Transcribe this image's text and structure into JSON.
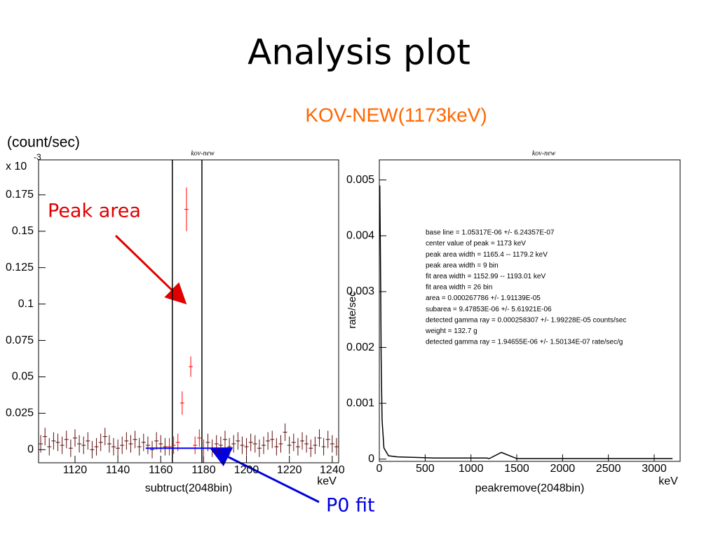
{
  "title": "Analysis plot",
  "subtitle": "KOV-NEW(1173keV)",
  "annotations": {
    "unit": "(count/sec)",
    "peak": "Peak area",
    "fit": "P0 fit"
  },
  "chart_data": [
    {
      "type": "errorbar",
      "title": "kov-new",
      "x_label": "subtruct(2048bin)",
      "x_unit": "keV",
      "y_multiplier": "x 10",
      "y_exponent": "-3",
      "xlim": [
        1103,
        1243
      ],
      "ylim": [
        -0.009,
        0.199
      ],
      "xticks": [
        1120,
        1140,
        1160,
        1180,
        1200,
        1220,
        1240
      ],
      "yticks": [
        0,
        0.025,
        0.05,
        0.075,
        0.1,
        0.125,
        0.15,
        0.175
      ],
      "vlines": [
        1165.4,
        1179.2
      ],
      "fit": {
        "x": [
          1152.99,
          1193.01
        ],
        "value": 0.001,
        "color": "#0000ff"
      },
      "series": [
        {
          "color": "#5a0a0a",
          "error": 0.006,
          "x": [
            1104,
            1106,
            1108,
            1110,
            1112,
            1114,
            1116,
            1118,
            1120,
            1122,
            1124,
            1126,
            1128,
            1130,
            1132,
            1134,
            1136,
            1138,
            1140,
            1142,
            1144,
            1146,
            1148,
            1150,
            1152,
            1154,
            1156,
            1158,
            1160,
            1162,
            1182,
            1184,
            1186,
            1188,
            1190,
            1192,
            1194,
            1196,
            1198,
            1200,
            1202,
            1204,
            1206,
            1208,
            1210,
            1212,
            1214,
            1216,
            1218,
            1220,
            1222,
            1224,
            1226,
            1228,
            1230,
            1232,
            1234,
            1236,
            1238,
            1240,
            1242
          ],
          "values": [
            0.004,
            0.009,
            0.002,
            0.006,
            0.005,
            0.003,
            0.007,
            0.001,
            0.008,
            0.004,
            0.003,
            0.006,
            0.0,
            0.002,
            0.005,
            0.009,
            0.004,
            0.002,
            0.001,
            0.003,
            0.006,
            0.004,
            0.007,
            0.002,
            0.005,
            0.003,
            0.0,
            0.006,
            0.004,
            0.002,
            0.005,
            0.001,
            0.004,
            0.003,
            0.007,
            0.002,
            0.004,
            0.006,
            0.003,
            0.002,
            0.005,
            0.004,
            0.001,
            0.003,
            0.006,
            0.007,
            0.002,
            0.004,
            0.012,
            0.003,
            0.005,
            0.002,
            0.006,
            0.004,
            0.001,
            0.003,
            0.008,
            0.002,
            0.007,
            0.004,
            0.002
          ]
        },
        {
          "color": "#ff0000",
          "error": [
            0.006,
            0.006,
            0.006,
            0.008,
            0.015,
            0.007,
            0.006,
            0.006,
            0.006
          ],
          "x": [
            1164,
            1166,
            1168,
            1170,
            1172,
            1174,
            1176,
            1178,
            1180
          ],
          "values": [
            0.002,
            0.003,
            0.005,
            0.032,
            0.165,
            0.057,
            0.003,
            0.008,
            0.001
          ]
        }
      ]
    },
    {
      "type": "line",
      "title": "kov-new",
      "x_label": "peakremove(2048bin)",
      "x_unit": "keV",
      "y_label": "rate/sec",
      "xlim": [
        0,
        3283
      ],
      "ylim": [
        -4e-05,
        0.00536
      ],
      "xticks": [
        0,
        500,
        1000,
        1500,
        2000,
        2500,
        3000
      ],
      "yticks": [
        0,
        0.001,
        0.002,
        0.003,
        0.004,
        0.005
      ],
      "series": [
        {
          "color": "#000000",
          "x": [
            5,
            10,
            15,
            20,
            30,
            50,
            100,
            200,
            400,
            600,
            800,
            1000,
            1173,
            1200,
            1332,
            1500,
            2000,
            2500,
            3000,
            3200
          ],
          "values": [
            0.0049,
            0.004,
            0.003,
            0.0018,
            0.0007,
            0.0002,
            6e-05,
            4e-05,
            3e-05,
            2e-05,
            2e-05,
            2e-05,
            2e-05,
            1e-05,
            0.00012,
            1e-05,
            1e-05,
            1e-05,
            1e-05,
            1e-05
          ]
        }
      ],
      "notes": [
        "base line = 1.05317E-06 +/- 6.24357E-07",
        "center value of peak = 1173 keV",
        "peak area width = 1165.4 -- 1179.2 keV",
        "peak area width = 9 bin",
        "fit area width = 1152.99 -- 1193.01 keV",
        "fit area width = 26 bin",
        "area = 0.000267786 +/- 1.91139E-05",
        "subarea = 9.47853E-06 +/- 5.61921E-06",
        "detected gamma ray = 0.000258307 +/- 1.99228E-05 counts/sec",
        "weight = 132.7 g",
        "detected gamma ray = 1.94655E-06 +/- 1.50134E-07 rate/sec/g"
      ]
    }
  ]
}
